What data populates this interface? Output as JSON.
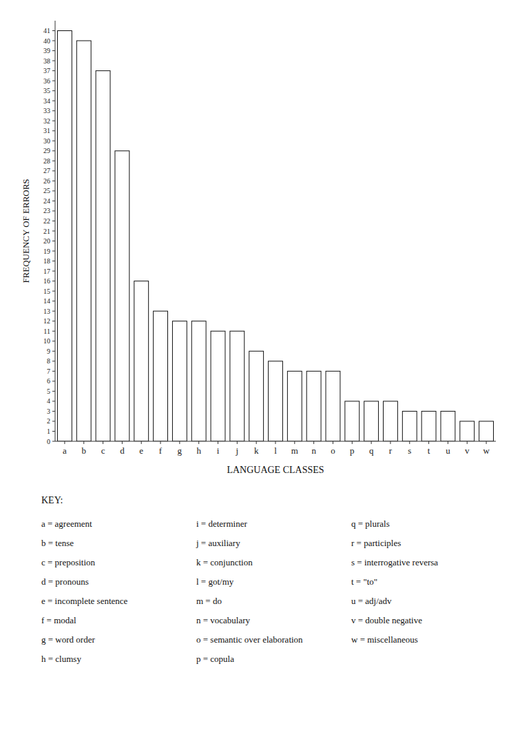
{
  "chart_data": {
    "type": "bar",
    "categories": [
      "a",
      "b",
      "c",
      "d",
      "e",
      "f",
      "g",
      "h",
      "i",
      "j",
      "k",
      "l",
      "m",
      "n",
      "o",
      "p",
      "q",
      "r",
      "s",
      "t",
      "u",
      "v",
      "w"
    ],
    "values": [
      41,
      40,
      37,
      29,
      16,
      13,
      12,
      12,
      11,
      11,
      9,
      8,
      7,
      7,
      7,
      4,
      4,
      4,
      3,
      3,
      3,
      2,
      2
    ],
    "color": "#ffffff",
    "xlabel": "LANGUAGE CLASSES",
    "ylabel": "FREQUENCY OF ERRORS",
    "ylim": [
      0,
      42
    ],
    "yticks": [
      0,
      1,
      2,
      3,
      4,
      5,
      6,
      7,
      8,
      9,
      10,
      11,
      12,
      13,
      14,
      15,
      16,
      17,
      18,
      19,
      20,
      21,
      22,
      23,
      24,
      25,
      26,
      27,
      28,
      29,
      30,
      31,
      32,
      33,
      34,
      35,
      36,
      37,
      38,
      39,
      40,
      41
    ],
    "grid": false,
    "annotations": [
      "KEY:",
      "a = agreement",
      "b = tense",
      "c = preposition",
      "d = pronouns",
      "e = incomplete sentence",
      "f = modal",
      "g = word order",
      "h = clumsy",
      "i = determiner",
      "j = auxiliary",
      "k = conjunction",
      "l = got/my",
      "m = do",
      "n = vocabulary",
      "o = semantic over elaboration",
      "p = copula",
      "q = plurals",
      "r = participles",
      "s = interrogative reversa",
      "t = \"to\"",
      "u = adj/adv",
      "v = double negative",
      "w = miscellaneous"
    ]
  }
}
